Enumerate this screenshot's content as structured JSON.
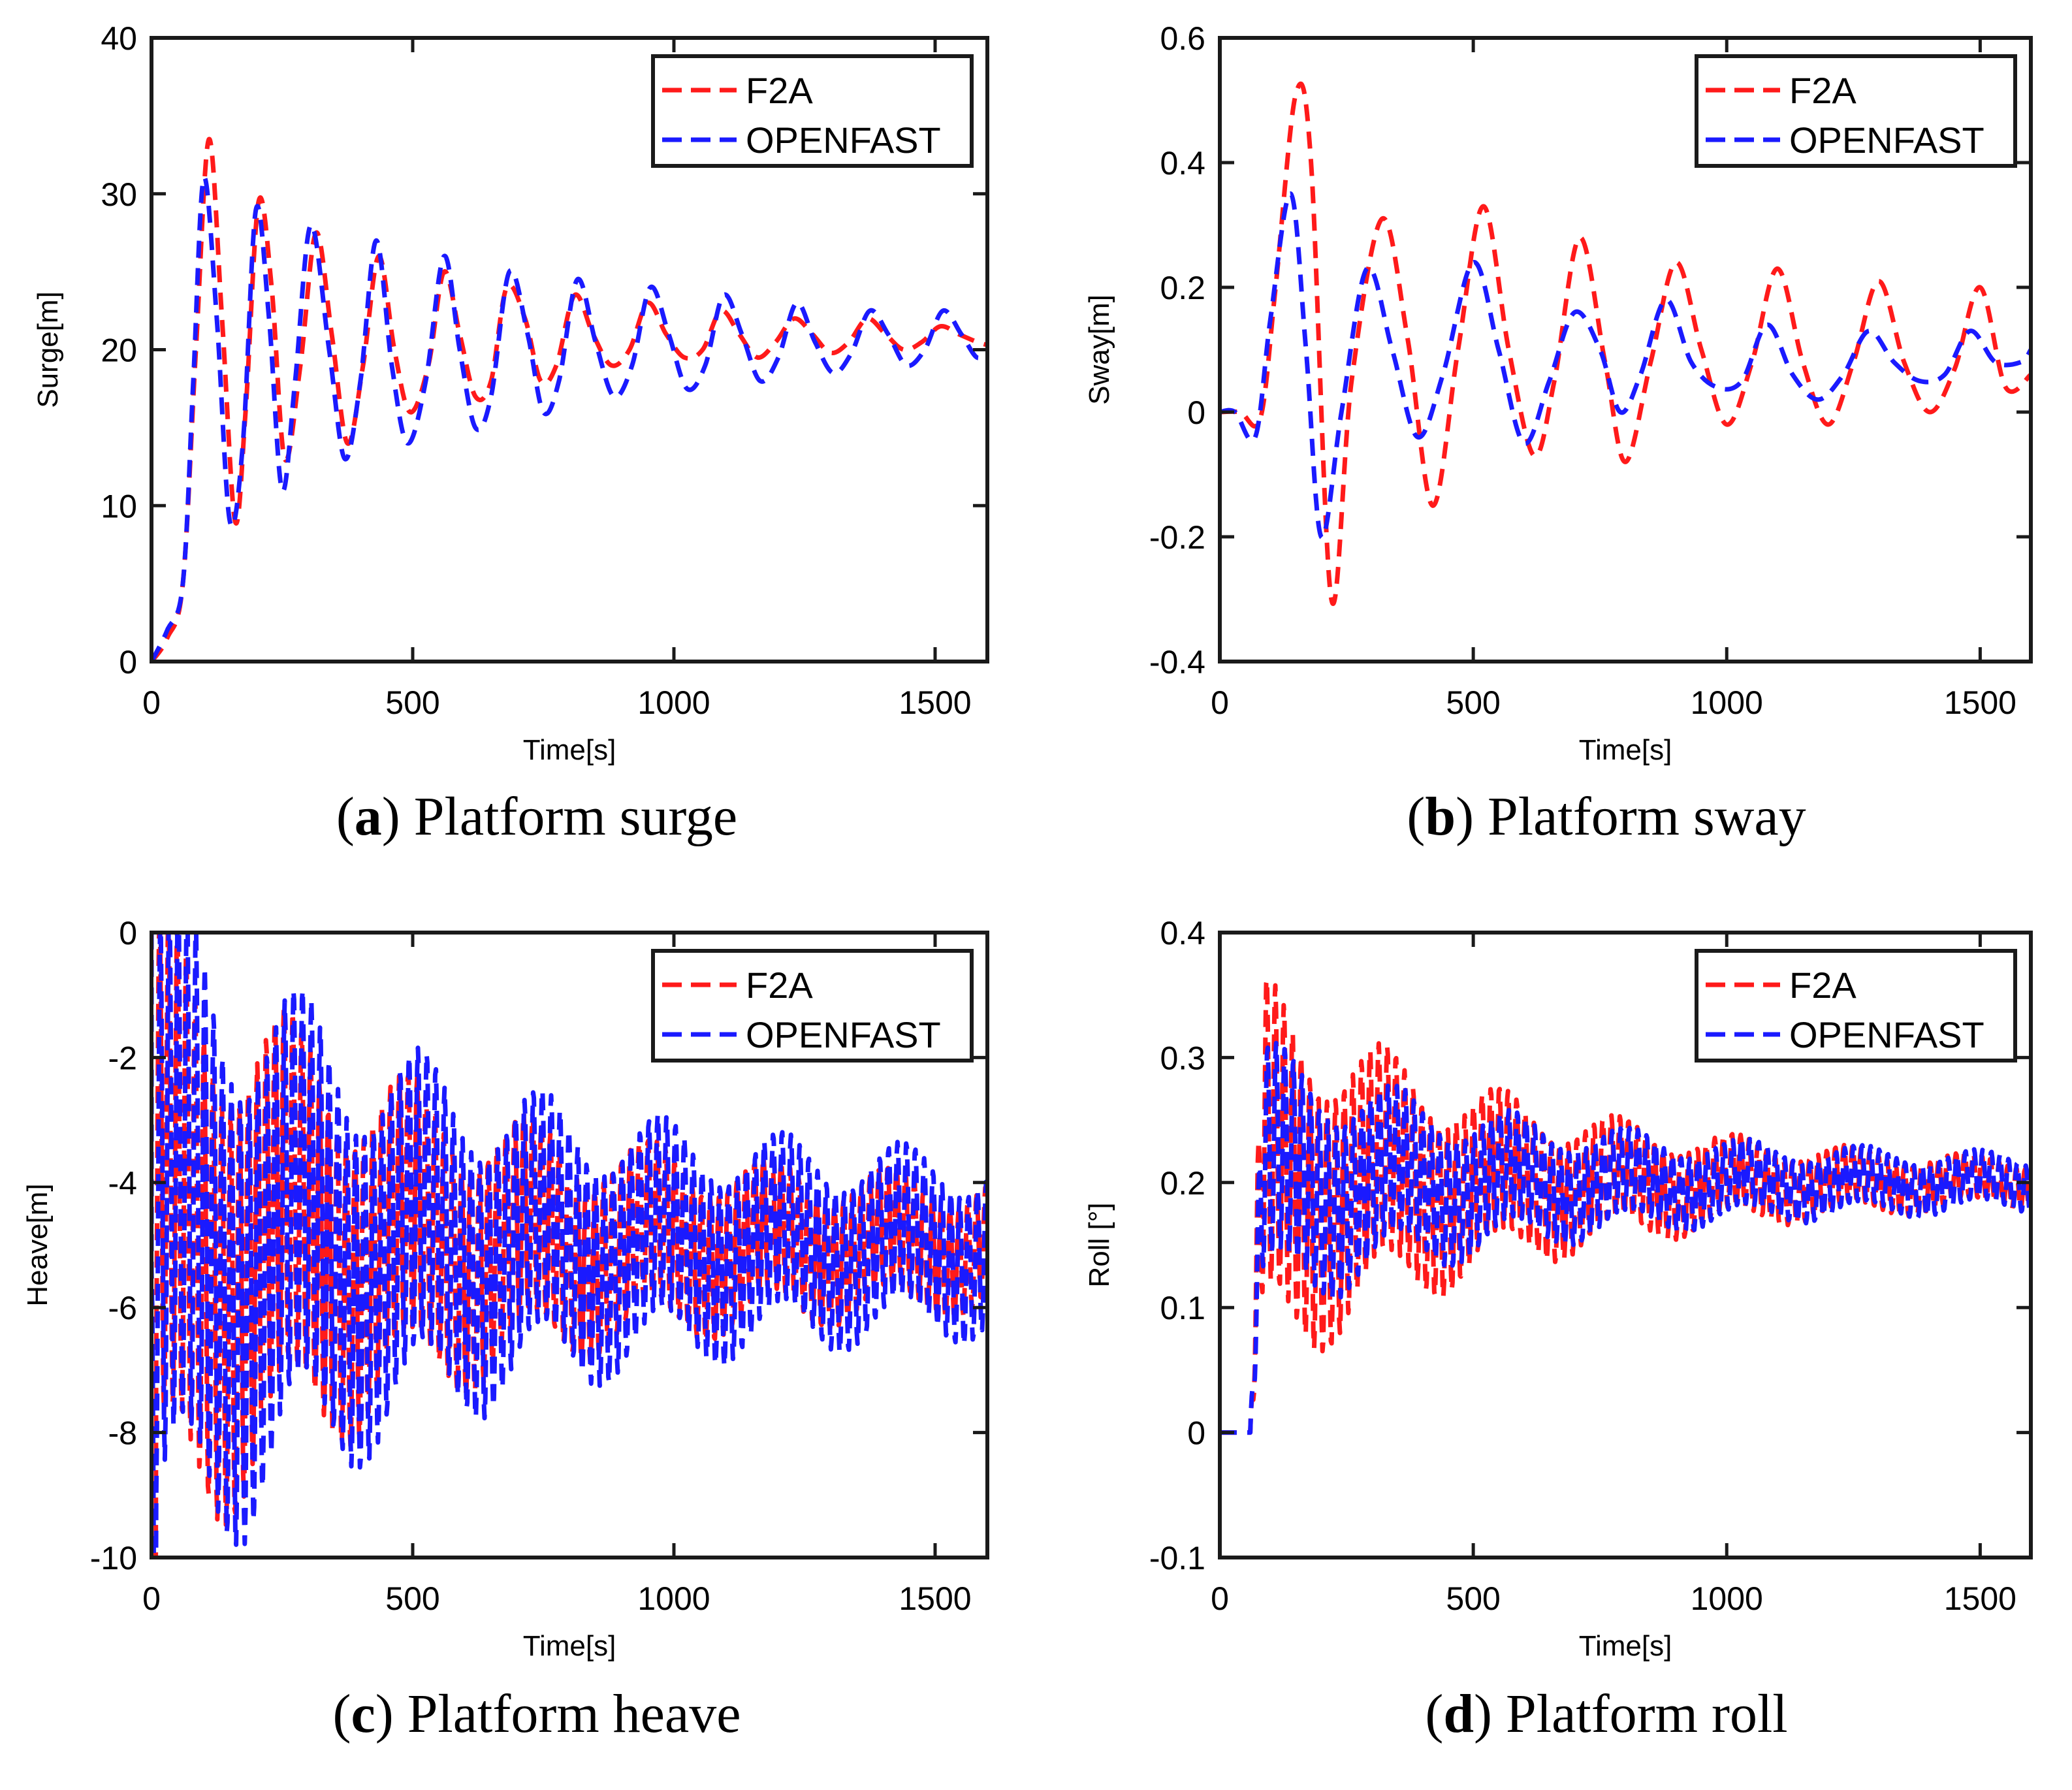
{
  "colors": {
    "f2a": "#ff1a1a",
    "openfast": "#1a1aff",
    "axis": "#1a1a1a"
  },
  "legend": {
    "f2a_label": "F2A",
    "openfast_label": "OPENFAST"
  },
  "chart_data": [
    {
      "id": "a",
      "type": "line",
      "caption": {
        "letter": "a",
        "text": "Platform surge",
        "open": "(",
        "close": ")"
      },
      "xlabel": "Time[s]",
      "ylabel": "Surge[m]",
      "xlim": [
        0,
        1600
      ],
      "ylim": [
        0,
        40
      ],
      "xticks": [
        "0",
        "500",
        "1000",
        "1500"
      ],
      "yticks": [
        "0",
        "10",
        "20",
        "30",
        "40"
      ],
      "legend_position": "top-right",
      "series": [
        {
          "name": "F2A",
          "x": [
            0,
            30,
            60,
            85,
            110,
            135,
            160,
            180,
            205,
            230,
            255,
            285,
            315,
            345,
            375,
            405,
            435,
            465,
            495,
            530,
            560,
            590,
            620,
            650,
            680,
            715,
            745,
            775,
            810,
            845,
            880,
            915,
            950,
            985,
            1020,
            1055,
            1090,
            1125,
            1160,
            1195,
            1230,
            1265,
            1300,
            1335,
            1370,
            1405,
            1440,
            1475,
            1510,
            1545,
            1580,
            1600
          ],
          "values": [
            0,
            1.5,
            5,
            20,
            33.5,
            22,
            9,
            16,
            29.5,
            24,
            13,
            19,
            27.5,
            21,
            14,
            19,
            26,
            20,
            16,
            19,
            25,
            21,
            17,
            18,
            24,
            22,
            18,
            19,
            23.5,
            21,
            19,
            20,
            23,
            21,
            19.5,
            20,
            22.5,
            21,
            19.5,
            20.5,
            22,
            21,
            19.8,
            20.5,
            22,
            21,
            20,
            20.5,
            21.5,
            21,
            20.5,
            20.3
          ]
        },
        {
          "name": "OPENFAST",
          "x": [
            0,
            30,
            60,
            80,
            100,
            125,
            150,
            175,
            200,
            225,
            250,
            275,
            305,
            340,
            370,
            400,
            430,
            460,
            490,
            525,
            560,
            590,
            620,
            650,
            685,
            720,
            750,
            780,
            815,
            850,
            885,
            920,
            955,
            990,
            1025,
            1060,
            1095,
            1130,
            1165,
            1200,
            1235,
            1270,
            1305,
            1340,
            1375,
            1410,
            1445,
            1480,
            1515,
            1550,
            1580,
            1600
          ],
          "values": [
            0,
            2,
            5,
            18,
            31,
            22,
            9,
            14,
            29,
            22,
            11,
            18,
            28,
            20,
            13,
            18,
            27,
            19,
            14,
            18,
            26,
            20,
            15,
            17,
            25,
            21,
            16,
            18,
            24.5,
            20.5,
            17,
            19,
            24,
            21,
            17.5,
            19,
            23.5,
            21,
            18,
            19.5,
            23,
            20.5,
            18.5,
            19.8,
            22.5,
            21,
            19,
            20,
            22.5,
            21,
            19.5,
            20
          ]
        }
      ]
    },
    {
      "id": "b",
      "type": "line",
      "caption": {
        "letter": "b",
        "text": "Platform sway",
        "open": "(",
        "close": ")"
      },
      "xlabel": "Time[s]",
      "ylabel": "Sway[m]",
      "xlim": [
        0,
        1600
      ],
      "ylim": [
        -0.4,
        0.6
      ],
      "xticks": [
        "0",
        "500",
        "1000",
        "1500"
      ],
      "yticks": [
        "-0.4",
        "-0.2",
        "0",
        "0.2",
        "0.4",
        "0.6"
      ],
      "legend_position": "top-right",
      "series": [
        {
          "name": "F2A",
          "x": [
            0,
            40,
            80,
            110,
            150,
            180,
            220,
            260,
            320,
            370,
            420,
            470,
            520,
            570,
            620,
            660,
            710,
            760,
            800,
            850,
            900,
            950,
            1000,
            1050,
            1100,
            1150,
            1200,
            1250,
            1300,
            1350,
            1400,
            1450,
            1500,
            1550,
            1600
          ],
          "values": [
            0,
            0,
            -0.01,
            0.2,
            0.51,
            0.4,
            -0.3,
            0.05,
            0.31,
            0.12,
            -0.15,
            0.1,
            0.33,
            0.1,
            -0.07,
            0.05,
            0.28,
            0.08,
            -0.08,
            0.08,
            0.24,
            0.1,
            -0.02,
            0.08,
            0.23,
            0.08,
            -0.02,
            0.08,
            0.21,
            0.08,
            0.0,
            0.07,
            0.2,
            0.04,
            0.06
          ]
        },
        {
          "name": "OPENFAST",
          "x": [
            0,
            30,
            70,
            100,
            140,
            170,
            200,
            240,
            290,
            340,
            390,
            440,
            500,
            550,
            600,
            650,
            700,
            750,
            790,
            830,
            880,
            930,
            980,
            1030,
            1080,
            1130,
            1180,
            1230,
            1280,
            1330,
            1380,
            1430,
            1480,
            1530,
            1580,
            1600
          ],
          "values": [
            0,
            0,
            -0.04,
            0.15,
            0.35,
            0.1,
            -0.2,
            0.0,
            0.23,
            0.1,
            -0.04,
            0.06,
            0.24,
            0.1,
            -0.05,
            0.05,
            0.16,
            0.1,
            0.0,
            0.06,
            0.18,
            0.08,
            0.04,
            0.05,
            0.14,
            0.06,
            0.02,
            0.06,
            0.13,
            0.08,
            0.05,
            0.06,
            0.13,
            0.08,
            0.08,
            0.1
          ]
        }
      ]
    },
    {
      "id": "c",
      "type": "line",
      "caption": {
        "letter": "c",
        "text": "Platform heave",
        "open": "(",
        "close": ")"
      },
      "xlabel": "Time[s]",
      "ylabel": "Heave[m]",
      "xlim": [
        0,
        1600
      ],
      "ylim": [
        -10,
        0
      ],
      "xticks": [
        "0",
        "500",
        "1000",
        "1500"
      ],
      "yticks": [
        "-10",
        "-8",
        "-6",
        "-4",
        "-2",
        "0"
      ],
      "legend_position": "top-right",
      "oscillation": {
        "mean": -5.0,
        "f2a_initial_amplitude": 4.2,
        "openfast_initial_amplitude": 4.6,
        "final_amplitude_f2a": 0.7,
        "final_amplitude_openfast": 1.0,
        "period_s": 17
      },
      "series": [
        {
          "name": "F2A",
          "x": [
            0,
            1600
          ],
          "values": [
            -5,
            -5
          ]
        },
        {
          "name": "OPENFAST",
          "x": [
            0,
            1600
          ],
          "values": [
            -5,
            -5
          ]
        }
      ]
    },
    {
      "id": "d",
      "type": "line",
      "caption": {
        "letter": "d",
        "text": "Platform roll",
        "open": "(",
        "close": ")"
      },
      "xlabel": "Time[s]",
      "ylabel": "Roll [°]",
      "xlim": [
        0,
        1600
      ],
      "ylim": [
        -0.1,
        0.4
      ],
      "xticks": [
        "0",
        "500",
        "1000",
        "1500"
      ],
      "yticks": [
        "-0.1",
        "0",
        "0.1",
        "0.2",
        "0.3",
        "0.4"
      ],
      "legend_position": "top-right",
      "oscillation": {
        "mean": 0.2,
        "f2a_initial_amplitude": 0.13,
        "openfast_initial_amplitude": 0.09,
        "final_amplitude_f2a": 0.01,
        "final_amplitude_openfast": 0.015,
        "period_s": 17,
        "start_s": 60
      },
      "series": [
        {
          "name": "F2A",
          "x": [
            0,
            60,
            1600
          ],
          "values": [
            0,
            0,
            0.2
          ]
        },
        {
          "name": "OPENFAST",
          "x": [
            0,
            60,
            1600
          ],
          "values": [
            0,
            0,
            0.2
          ]
        }
      ]
    }
  ]
}
